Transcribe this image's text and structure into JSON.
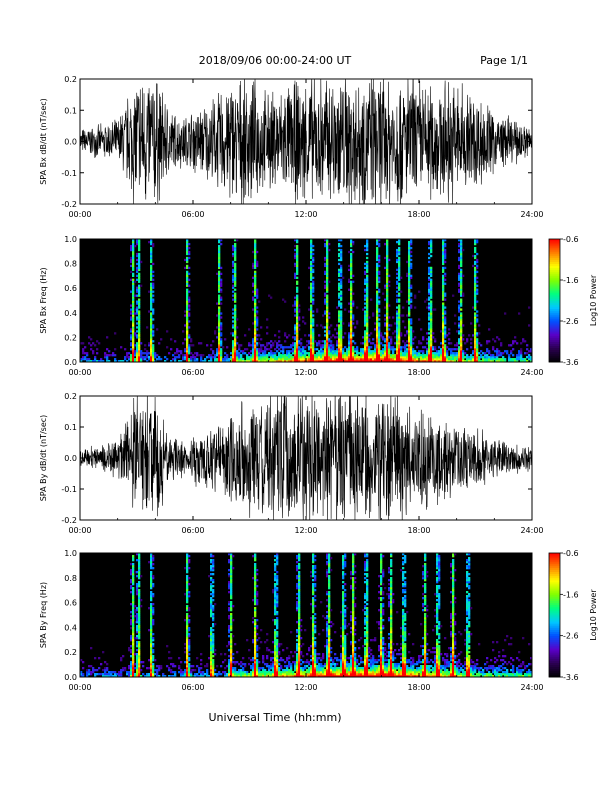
{
  "header": {
    "title": "2018/09/06  00:00-24:00 UT",
    "page": "Page 1/1"
  },
  "footer": {
    "xlabel": "Universal Time (hh:mm)"
  },
  "chart_data": [
    {
      "id": "bx_waveform",
      "type": "line",
      "ylabel": "SPA Bx dB/dt (nT/sec)",
      "x_range_hours": [
        0,
        24
      ],
      "x_ticks": [
        "00:00",
        "06:00",
        "12:00",
        "18:00",
        "24:00"
      ],
      "ylim": [
        -0.2,
        0.2
      ],
      "y_ticks": [
        "-0.2",
        "-0.1",
        "0.0",
        "0.1",
        "0.2"
      ],
      "color": "#000000",
      "envelope": {
        "x_hours": [
          0,
          1,
          2,
          2.5,
          3,
          3.5,
          4,
          4.5,
          5,
          5.5,
          6,
          7,
          8,
          9,
          10,
          11,
          12,
          13,
          14,
          15,
          16,
          17,
          18,
          19,
          20,
          21,
          22,
          23,
          24
        ],
        "half_amplitude": [
          0.04,
          0.05,
          0.07,
          0.14,
          0.22,
          0.22,
          0.22,
          0.14,
          0.09,
          0.08,
          0.1,
          0.13,
          0.2,
          0.2,
          0.15,
          0.18,
          0.2,
          0.21,
          0.22,
          0.22,
          0.22,
          0.22,
          0.2,
          0.18,
          0.2,
          0.16,
          0.1,
          0.07,
          0.05
        ]
      }
    },
    {
      "id": "bx_spectrogram",
      "type": "heatmap",
      "ylabel": "SPA Bx Freq (Hz)",
      "x_range_hours": [
        0,
        24
      ],
      "x_ticks": [
        "00:00",
        "06:00",
        "12:00",
        "18:00",
        "24:00"
      ],
      "ylim": [
        0.0,
        1.0
      ],
      "y_ticks": [
        "0.0",
        "0.2",
        "0.4",
        "0.6",
        "0.8",
        "1.0"
      ],
      "colorbar": {
        "label": "Log10 Power",
        "range": [
          -3.6,
          -0.6
        ],
        "ticks": [
          "-0.6",
          "-1.6",
          "-2.6",
          "-3.6"
        ],
        "colors": [
          "#000000",
          "#2a0050",
          "#5a00c8",
          "#0050ff",
          "#00c8ff",
          "#00ff80",
          "#80ff00",
          "#ffff00",
          "#ff8000",
          "#ff0000"
        ]
      },
      "spikes_hours": [
        2.8,
        3.1,
        3.8,
        5.7,
        7.4,
        8.2,
        9.3,
        11.5,
        12.3,
        13.1,
        13.8,
        14.4,
        15.2,
        15.8,
        16.3,
        16.9,
        17.5,
        18.6,
        19.3,
        20.2,
        21.0
      ]
    },
    {
      "id": "by_waveform",
      "type": "line",
      "ylabel": "SPA By dB/dt (nT/sec)",
      "x_range_hours": [
        0,
        24
      ],
      "x_ticks": [
        "00:00",
        "06:00",
        "12:00",
        "18:00",
        "24:00"
      ],
      "ylim": [
        -0.2,
        0.2
      ],
      "y_ticks": [
        "-0.2",
        "-0.1",
        "0.0",
        "0.1",
        "0.2"
      ],
      "color": "#000000",
      "envelope": {
        "x_hours": [
          0,
          1,
          2,
          2.5,
          3,
          3.5,
          4,
          4.5,
          5,
          5.5,
          6,
          7,
          8,
          9,
          10,
          11,
          12,
          13,
          14,
          15,
          16,
          17,
          18,
          19,
          20,
          21,
          22,
          23,
          24
        ],
        "half_amplitude": [
          0.03,
          0.04,
          0.06,
          0.12,
          0.22,
          0.22,
          0.22,
          0.12,
          0.07,
          0.06,
          0.08,
          0.1,
          0.16,
          0.18,
          0.2,
          0.22,
          0.22,
          0.22,
          0.22,
          0.22,
          0.22,
          0.2,
          0.16,
          0.14,
          0.12,
          0.1,
          0.07,
          0.05,
          0.04
        ]
      }
    },
    {
      "id": "by_spectrogram",
      "type": "heatmap",
      "ylabel": "SPA By Freq (Hz)",
      "x_range_hours": [
        0,
        24
      ],
      "x_ticks": [
        "00:00",
        "06:00",
        "12:00",
        "18:00",
        "24:00"
      ],
      "ylim": [
        0.0,
        1.0
      ],
      "y_ticks": [
        "0.0",
        "0.2",
        "0.4",
        "0.6",
        "0.8",
        "1.0"
      ],
      "colorbar": {
        "label": "Log10 Power",
        "range": [
          -3.6,
          -0.6
        ],
        "ticks": [
          "-0.6",
          "-1.6",
          "-2.6",
          "-3.6"
        ],
        "colors": [
          "#000000",
          "#2a0050",
          "#5a00c8",
          "#0050ff",
          "#00c8ff",
          "#00ff80",
          "#80ff00",
          "#ffff00",
          "#ff8000",
          "#ff0000"
        ]
      },
      "spikes_hours": [
        2.8,
        3.1,
        3.8,
        5.7,
        7.0,
        8.0,
        9.3,
        10.4,
        11.6,
        12.4,
        13.2,
        14.0,
        14.5,
        15.2,
        16.0,
        16.5,
        17.2,
        18.3,
        19.0,
        19.8,
        20.6
      ]
    }
  ]
}
